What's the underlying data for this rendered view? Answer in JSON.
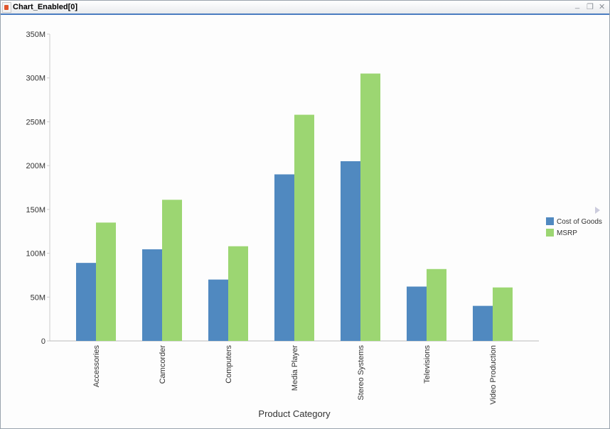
{
  "window": {
    "title": "Chart_Enabled[0]",
    "minimize": "_",
    "restore": "❐",
    "close": "✕"
  },
  "chart_data": {
    "type": "bar",
    "title": "",
    "xlabel": "Product Category",
    "ylabel": "",
    "ylim": [
      0,
      350000000
    ],
    "yticks": [
      "0",
      "50M",
      "100M",
      "150M",
      "200M",
      "250M",
      "300M",
      "350M"
    ],
    "categories": [
      "Accessories",
      "Camcorder",
      "Computers",
      "Media Player",
      "Stereo Systems",
      "Televisions",
      "Video Production"
    ],
    "series": [
      {
        "name": "Cost of Goods",
        "color": "#5089c0",
        "values": [
          89000000,
          104500000,
          70000000,
          190000000,
          205000000,
          62000000,
          40000000
        ]
      },
      {
        "name": "MSRP",
        "color": "#9cd672",
        "values": [
          135000000,
          161000000,
          108000000,
          258000000,
          305000000,
          82000000,
          61000000
        ]
      }
    ],
    "legend": "right",
    "grid": false
  }
}
